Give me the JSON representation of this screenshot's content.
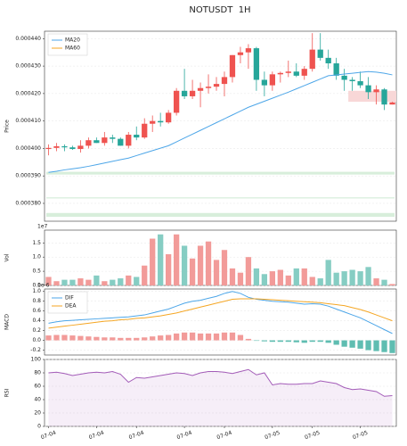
{
  "chart_data": [
    {
      "type": "candlestick",
      "title": "NOTUSDT  1H",
      "y_label": "Price",
      "categories": [
        "07-04",
        null,
        null,
        null,
        null,
        null,
        "07-04",
        null,
        null,
        null,
        null,
        "07-04",
        null,
        null,
        null,
        null,
        null,
        "07-04",
        null,
        null,
        null,
        null,
        "07-04",
        null,
        null,
        null,
        null,
        null,
        "07-05",
        null,
        null,
        null,
        null,
        "07-05",
        null,
        null,
        null,
        null,
        null,
        "07-05",
        null,
        null,
        null,
        null
      ],
      "open": [
        0.0003998,
        0.0004002,
        0.0004008,
        0.0004004,
        0.0003998,
        0.000401,
        0.000403,
        0.000402,
        0.000404,
        0.0004035,
        0.000401,
        0.000405,
        0.000404,
        0.000409,
        0.00041,
        0.0004095,
        0.000413,
        0.000421,
        0.000419,
        0.000421,
        0.000422,
        0.0004225,
        0.0004235,
        0.000426,
        0.000434,
        0.000435,
        0.0004365,
        0.000425,
        0.000423,
        0.000427,
        0.0004275,
        0.000428,
        0.0004265,
        0.000429,
        0.000436,
        0.000433,
        0.000431,
        0.0004265,
        0.000425,
        0.0004245,
        0.000423,
        0.0004205,
        0.0004215,
        0.000416
      ],
      "high": [
        0.0004015,
        0.000402,
        0.0004015,
        0.000401,
        0.000403,
        0.000404,
        0.000404,
        0.000406,
        0.000405,
        0.000404,
        0.000406,
        0.000408,
        0.000411,
        0.000412,
        0.000413,
        0.000414,
        0.000422,
        0.000429,
        0.000425,
        0.000424,
        0.000427,
        0.000426,
        0.000428,
        0.000434,
        0.000437,
        0.000438,
        0.000437,
        0.000428,
        0.000428,
        0.000428,
        0.000432,
        0.000431,
        0.00043,
        0.000442,
        0.000442,
        0.000436,
        0.000433,
        0.000429,
        0.000426,
        0.000428,
        0.000426,
        0.000423,
        0.000422,
        0.000417
      ],
      "low": [
        0.0003975,
        0.000399,
        0.000399,
        0.0003995,
        0.0003985,
        0.0004,
        0.000402,
        0.000401,
        0.000402,
        0.000401,
        0.0004,
        0.000403,
        0.0004035,
        0.000406,
        0.000408,
        0.000409,
        0.000412,
        0.000418,
        0.000418,
        0.000415,
        0.00042,
        0.000421,
        0.000419,
        0.000424,
        0.000431,
        0.000429,
        0.000421,
        0.000419,
        0.000421,
        0.000424,
        0.000426,
        0.000426,
        0.000425,
        0.000428,
        0.000432,
        0.000429,
        0.000425,
        0.000421,
        0.000421,
        0.000422,
        0.000418,
        0.000416,
        0.000414,
        0.000416
      ],
      "close": [
        0.0004002,
        0.0004008,
        0.0004004,
        0.0003998,
        0.000401,
        0.000403,
        0.000402,
        0.000404,
        0.0004035,
        0.000401,
        0.000405,
        0.000404,
        0.000409,
        0.00041,
        0.0004095,
        0.000413,
        0.000421,
        0.000419,
        0.000421,
        0.000422,
        0.0004225,
        0.0004235,
        0.000426,
        0.000434,
        0.000435,
        0.0004365,
        0.000425,
        0.000423,
        0.000427,
        0.0004275,
        0.000428,
        0.0004265,
        0.000429,
        0.000436,
        0.000433,
        0.000431,
        0.0004265,
        0.000425,
        0.0004245,
        0.000423,
        0.0004205,
        0.0004215,
        0.000416,
        0.0004168
      ],
      "up_color": "#ef5350",
      "down_color": "#26a69a",
      "series": [
        {
          "name": "MA20",
          "color": "#4da6e8",
          "values": [
            0.0003913,
            0.0003917,
            0.0003922,
            0.0003926,
            0.000393,
            0.0003935,
            0.0003941,
            0.0003947,
            0.0003953,
            0.0003959,
            0.0003965,
            0.0003974,
            0.0003983,
            0.0003992,
            0.0004001,
            0.000401,
            0.0004024,
            0.0004038,
            0.0004052,
            0.0004066,
            0.000408,
            0.0004094,
            0.0004108,
            0.0004122,
            0.0004136,
            0.000415,
            0.0004161,
            0.0004172,
            0.0004183,
            0.0004194,
            0.0004205,
            0.0004217,
            0.0004229,
            0.0004241,
            0.0004253,
            0.0004265,
            0.0004268,
            0.0004271,
            0.0004274,
            0.0004277,
            0.000428,
            0.0004278,
            0.0004274,
            0.0004268
          ]
        },
        {
          "name": "MA60",
          "color": "#f5a623",
          "values": [
            null,
            null,
            null,
            null,
            null,
            null,
            null,
            null,
            null,
            null,
            null,
            null,
            null,
            null,
            null,
            null,
            null,
            null,
            null,
            null,
            null,
            null,
            null,
            null,
            null,
            null,
            null,
            null,
            null,
            null,
            null,
            null,
            null,
            null,
            null,
            null,
            null,
            null,
            null,
            null,
            null,
            null,
            null,
            null
          ]
        }
      ],
      "zones": [
        {
          "from": 0.0003905,
          "to": 0.0003915,
          "color": "#d8eedb"
        },
        {
          "from": 0.0003818,
          "to": 0.0003822,
          "color": "#d8eedb"
        },
        {
          "from": 0.0003751,
          "to": 0.0003765,
          "color": "#d8eedb"
        }
      ],
      "box": {
        "from": 0.000417,
        "to": 0.000421,
        "start": 38,
        "color": "#f8d7d7"
      },
      "ylim": [
        0.0003735,
        0.0004427
      ],
      "yticks": [
        {
          "value": 0.00038,
          "label": "0.000380"
        },
        {
          "value": 0.00039,
          "label": "0.000390"
        },
        {
          "value": 0.0004,
          "label": "0.000400"
        },
        {
          "value": 0.00041,
          "label": "0.000410"
        },
        {
          "value": 0.00042,
          "label": "0.000420"
        },
        {
          "value": 0.00043,
          "label": "0.000430"
        },
        {
          "value": 0.00044,
          "label": "0.000440"
        }
      ],
      "grid": true,
      "legend": "upper left"
    },
    {
      "type": "bar",
      "y_label": "Vol",
      "offset_label": "1e7",
      "values": [
        0.3,
        0.15,
        0.2,
        0.2,
        0.25,
        0.2,
        0.35,
        0.15,
        0.2,
        0.25,
        0.35,
        0.3,
        0.7,
        1.65,
        1.8,
        1.1,
        1.8,
        1.4,
        0.95,
        1.4,
        1.55,
        0.9,
        1.25,
        0.6,
        0.45,
        1.0,
        0.6,
        0.4,
        0.5,
        0.55,
        0.35,
        0.6,
        0.6,
        0.3,
        0.25,
        0.9,
        0.45,
        0.5,
        0.55,
        0.5,
        0.65,
        0.25,
        0.2,
        0.05
      ],
      "up_color": "#f29b99",
      "down_color": "#86cdc3",
      "ylim": [
        0,
        1.95
      ],
      "yticks": [
        {
          "value": 0,
          "label": "0.0"
        },
        0.5,
        {
          "value": 1,
          "label": "1.0"
        },
        1.5
      ],
      "grid": true
    },
    {
      "type": "macd",
      "y_label": "MACD",
      "offset_label": "1e-6",
      "series": [
        {
          "name": "DIF",
          "color": "#4da6e8",
          "values": [
            0.35,
            0.38,
            0.4,
            0.41,
            0.42,
            0.43,
            0.44,
            0.45,
            0.46,
            0.47,
            0.48,
            0.5,
            0.52,
            0.56,
            0.6,
            0.64,
            0.7,
            0.76,
            0.8,
            0.82,
            0.86,
            0.9,
            0.96,
            1.0,
            0.96,
            0.88,
            0.84,
            0.82,
            0.8,
            0.79,
            0.78,
            0.76,
            0.74,
            0.75,
            0.74,
            0.7,
            0.64,
            0.58,
            0.52,
            0.46,
            0.38,
            0.3,
            0.22,
            0.14
          ]
        },
        {
          "name": "DEA",
          "color": "#f5a623",
          "values": [
            0.25,
            0.27,
            0.29,
            0.31,
            0.33,
            0.35,
            0.37,
            0.39,
            0.4,
            0.42,
            0.43,
            0.45,
            0.46,
            0.48,
            0.5,
            0.53,
            0.56,
            0.6,
            0.64,
            0.68,
            0.72,
            0.76,
            0.8,
            0.84,
            0.85,
            0.85,
            0.85,
            0.84,
            0.83,
            0.82,
            0.81,
            0.8,
            0.79,
            0.78,
            0.77,
            0.75,
            0.73,
            0.71,
            0.67,
            0.63,
            0.58,
            0.52,
            0.46,
            0.4
          ]
        }
      ],
      "histogram": [
        0.1,
        0.11,
        0.11,
        0.1,
        0.09,
        0.08,
        0.07,
        0.06,
        0.06,
        0.05,
        0.05,
        0.05,
        0.06,
        0.08,
        0.1,
        0.11,
        0.14,
        0.16,
        0.16,
        0.14,
        0.14,
        0.14,
        0.16,
        0.16,
        0.11,
        0.03,
        -0.01,
        -0.02,
        -0.03,
        -0.03,
        -0.03,
        -0.04,
        -0.05,
        -0.03,
        -0.03,
        -0.05,
        -0.09,
        -0.13,
        -0.15,
        -0.17,
        -0.2,
        -0.22,
        -0.24,
        -0.26
      ],
      "up_color": "#f29b99",
      "down_color": "#5fbdb1",
      "ylim": [
        -0.3,
        1.05
      ],
      "yticks": [
        {
          "value": -0.2,
          "label": "-0.2"
        },
        {
          "value": 0,
          "label": "0.0"
        },
        0.2,
        0.4,
        0.6,
        0.8,
        {
          "value": 1,
          "label": "1.0"
        }
      ],
      "grid": true,
      "legend": "upper left"
    },
    {
      "type": "line",
      "y_label": "RSI",
      "color": "#a35cb8",
      "values": [
        80,
        81,
        79,
        76,
        78,
        80,
        81,
        80,
        82,
        78,
        66,
        73,
        72,
        74,
        76,
        78,
        80,
        79,
        76,
        80,
        82,
        82,
        81,
        79,
        82,
        85,
        77,
        80,
        62,
        64,
        63,
        63,
        64,
        64,
        68,
        66,
        64,
        58,
        55,
        56,
        54,
        52,
        45,
        46
      ],
      "ylim": [
        0,
        100
      ],
      "yticks": [
        0,
        20,
        40,
        60,
        80,
        100
      ],
      "grid": true
    }
  ]
}
